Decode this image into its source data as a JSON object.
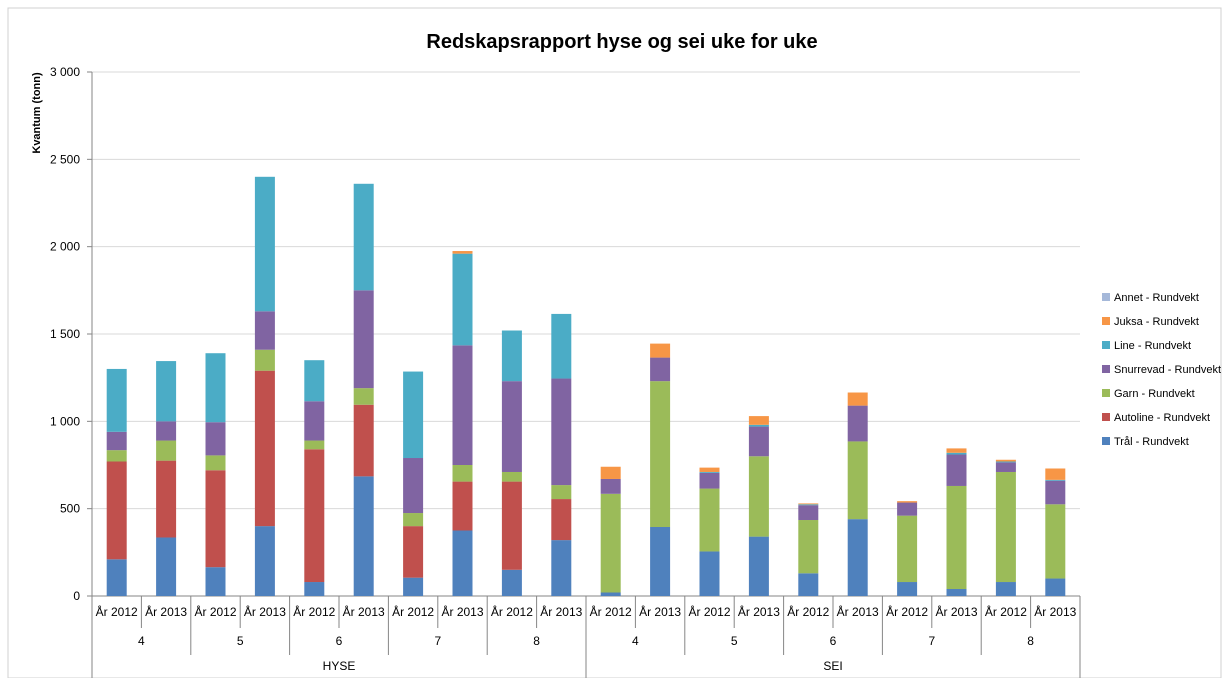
{
  "chart_data": {
    "type": "bar",
    "stacked": true,
    "title": "Redskapsrapport hyse og sei uke for uke",
    "xlabel": "",
    "ylabel": "Kvantum (tonn)",
    "ylim": [
      0,
      3000
    ],
    "yticks": [
      "0",
      "500",
      "1 000",
      "1 500",
      "2 000",
      "2 500",
      "3 000"
    ],
    "ytick_values": [
      0,
      500,
      1000,
      1500,
      2000,
      2500,
      3000
    ],
    "grid": true,
    "legend_position": "right",
    "categories": [
      "År 2012",
      "År 2013",
      "År 2012",
      "År 2013",
      "År 2012",
      "År 2013",
      "År 2012",
      "År 2013",
      "År 2012",
      "År 2013",
      "År 2012",
      "År 2013",
      "År 2012",
      "År 2013",
      "År 2012",
      "År 2013",
      "År 2012",
      "År 2013",
      "År 2012",
      "År 2013"
    ],
    "weeks": [
      "4",
      "5",
      "6",
      "7",
      "8",
      "4",
      "5",
      "6",
      "7",
      "8"
    ],
    "species": [
      "HYSE",
      "SEI"
    ],
    "series": [
      {
        "name": "Trål - Rundvekt",
        "color": "#4F81BD",
        "values": [
          210,
          335,
          165,
          400,
          80,
          685,
          105,
          375,
          150,
          320,
          20,
          395,
          255,
          340,
          130,
          440,
          80,
          40,
          80,
          100
        ]
      },
      {
        "name": "Autoline - Rundvekt",
        "color": "#C0504D",
        "values": [
          560,
          440,
          555,
          890,
          760,
          410,
          295,
          280,
          505,
          235,
          0,
          0,
          0,
          0,
          0,
          0,
          0,
          0,
          0,
          0
        ]
      },
      {
        "name": "Garn - Rundvekt",
        "color": "#9BBB59",
        "values": [
          65,
          115,
          85,
          120,
          50,
          95,
          75,
          95,
          55,
          80,
          565,
          835,
          360,
          460,
          305,
          445,
          380,
          590,
          630,
          425
        ]
      },
      {
        "name": "Snurrevad - Rundvekt",
        "color": "#8064A2",
        "values": [
          105,
          110,
          190,
          220,
          225,
          560,
          315,
          685,
          520,
          610,
          85,
          135,
          90,
          170,
          85,
          205,
          75,
          180,
          55,
          135
        ]
      },
      {
        "name": "Line - Rundvekt",
        "color": "#4BACC6",
        "values": [
          360,
          345,
          395,
          770,
          235,
          610,
          495,
          525,
          290,
          370,
          0,
          0,
          5,
          10,
          5,
          0,
          0,
          10,
          5,
          5
        ]
      },
      {
        "name": "Juksa - Rundvekt",
        "color": "#F79646",
        "values": [
          0,
          0,
          0,
          0,
          0,
          0,
          0,
          15,
          0,
          0,
          70,
          80,
          25,
          50,
          5,
          75,
          8,
          25,
          10,
          65
        ]
      },
      {
        "name": "Annet - Rundvekt",
        "color": "#A5B8D9",
        "values": [
          0,
          0,
          0,
          0,
          0,
          0,
          0,
          0,
          0,
          0,
          0,
          0,
          0,
          0,
          0,
          0,
          0,
          0,
          0,
          0
        ]
      }
    ]
  }
}
